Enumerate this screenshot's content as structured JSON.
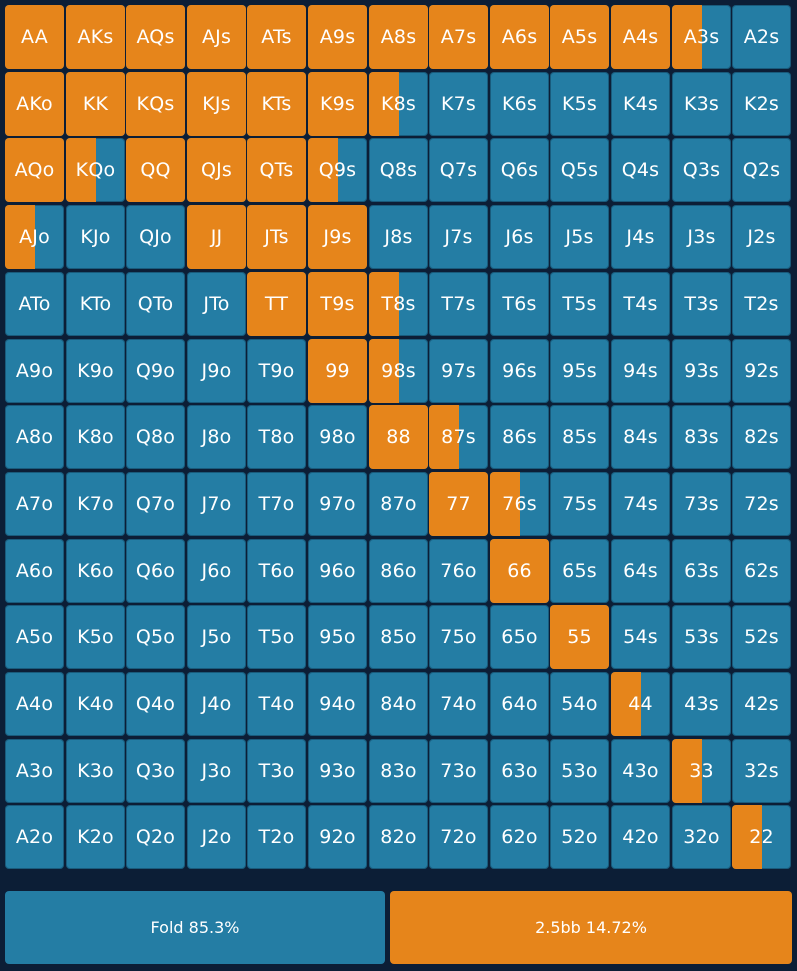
{
  "colors": {
    "fold": "#247da4",
    "raise": "#e6851b",
    "background": "#0c1e36"
  },
  "grid": {
    "rows": [
      [
        "AA",
        "AKs",
        "AQs",
        "AJs",
        "ATs",
        "A9s",
        "A8s",
        "A7s",
        "A6s",
        "A5s",
        "A4s",
        "A3s",
        "A2s"
      ],
      [
        "AKo",
        "KK",
        "KQs",
        "KJs",
        "KTs",
        "K9s",
        "K8s",
        "K7s",
        "K6s",
        "K5s",
        "K4s",
        "K3s",
        "K2s"
      ],
      [
        "AQo",
        "KQo",
        "QQ",
        "QJs",
        "QTs",
        "Q9s",
        "Q8s",
        "Q7s",
        "Q6s",
        "Q5s",
        "Q4s",
        "Q3s",
        "Q2s"
      ],
      [
        "AJo",
        "KJo",
        "QJo",
        "JJ",
        "JTs",
        "J9s",
        "J8s",
        "J7s",
        "J6s",
        "J5s",
        "J4s",
        "J3s",
        "J2s"
      ],
      [
        "ATo",
        "KTo",
        "QTo",
        "JTo",
        "TT",
        "T9s",
        "T8s",
        "T7s",
        "T6s",
        "T5s",
        "T4s",
        "T3s",
        "T2s"
      ],
      [
        "A9o",
        "K9o",
        "Q9o",
        "J9o",
        "T9o",
        "99",
        "98s",
        "97s",
        "96s",
        "95s",
        "94s",
        "93s",
        "92s"
      ],
      [
        "A8o",
        "K8o",
        "Q8o",
        "J8o",
        "T8o",
        "98o",
        "88",
        "87s",
        "86s",
        "85s",
        "84s",
        "83s",
        "82s"
      ],
      [
        "A7o",
        "K7o",
        "Q7o",
        "J7o",
        "T7o",
        "97o",
        "87o",
        "77",
        "76s",
        "75s",
        "74s",
        "73s",
        "72s"
      ],
      [
        "A6o",
        "K6o",
        "Q6o",
        "J6o",
        "T6o",
        "96o",
        "86o",
        "76o",
        "66",
        "65s",
        "64s",
        "63s",
        "62s"
      ],
      [
        "A5o",
        "K5o",
        "Q5o",
        "J5o",
        "T5o",
        "95o",
        "85o",
        "75o",
        "65o",
        "55",
        "54s",
        "53s",
        "52s"
      ],
      [
        "A4o",
        "K4o",
        "Q4o",
        "J4o",
        "T4o",
        "94o",
        "84o",
        "74o",
        "64o",
        "54o",
        "44",
        "43s",
        "42s"
      ],
      [
        "A3o",
        "K3o",
        "Q3o",
        "J3o",
        "T3o",
        "93o",
        "83o",
        "73o",
        "63o",
        "53o",
        "43o",
        "33",
        "32s"
      ],
      [
        "A2o",
        "K2o",
        "Q2o",
        "J2o",
        "T2o",
        "92o",
        "82o",
        "72o",
        "62o",
        "52o",
        "42o",
        "32o",
        "22"
      ]
    ],
    "raise_fraction": [
      [
        1,
        1,
        1,
        1,
        1,
        1,
        1,
        1,
        1,
        1,
        1,
        0.5,
        0
      ],
      [
        1,
        1,
        1,
        1,
        1,
        1,
        0.5,
        0,
        0,
        0,
        0,
        0,
        0
      ],
      [
        1,
        0.5,
        1,
        1,
        1,
        0.5,
        0,
        0,
        0,
        0,
        0,
        0,
        0
      ],
      [
        0.5,
        0,
        0,
        1,
        1,
        1,
        0,
        0,
        0,
        0,
        0,
        0,
        0
      ],
      [
        0,
        0,
        0,
        0,
        1,
        1,
        0.5,
        0,
        0,
        0,
        0,
        0,
        0
      ],
      [
        0,
        0,
        0,
        0,
        0,
        1,
        0.5,
        0,
        0,
        0,
        0,
        0,
        0
      ],
      [
        0,
        0,
        0,
        0,
        0,
        0,
        1,
        0.5,
        0,
        0,
        0,
        0,
        0
      ],
      [
        0,
        0,
        0,
        0,
        0,
        0,
        0,
        1,
        0.5,
        0,
        0,
        0,
        0
      ],
      [
        0,
        0,
        0,
        0,
        0,
        0,
        0,
        0,
        1,
        0,
        0,
        0,
        0
      ],
      [
        0,
        0,
        0,
        0,
        0,
        0,
        0,
        0,
        0,
        1,
        0,
        0,
        0
      ],
      [
        0,
        0,
        0,
        0,
        0,
        0,
        0,
        0,
        0,
        0,
        0.5,
        0,
        0
      ],
      [
        0,
        0,
        0,
        0,
        0,
        0,
        0,
        0,
        0,
        0,
        0,
        0.5,
        0
      ],
      [
        0,
        0,
        0,
        0,
        0,
        0,
        0,
        0,
        0,
        0,
        0,
        0,
        0.5
      ]
    ]
  },
  "legend": {
    "fold_label": "Fold 85.3%",
    "raise_label": "2.5bb 14.72%"
  }
}
